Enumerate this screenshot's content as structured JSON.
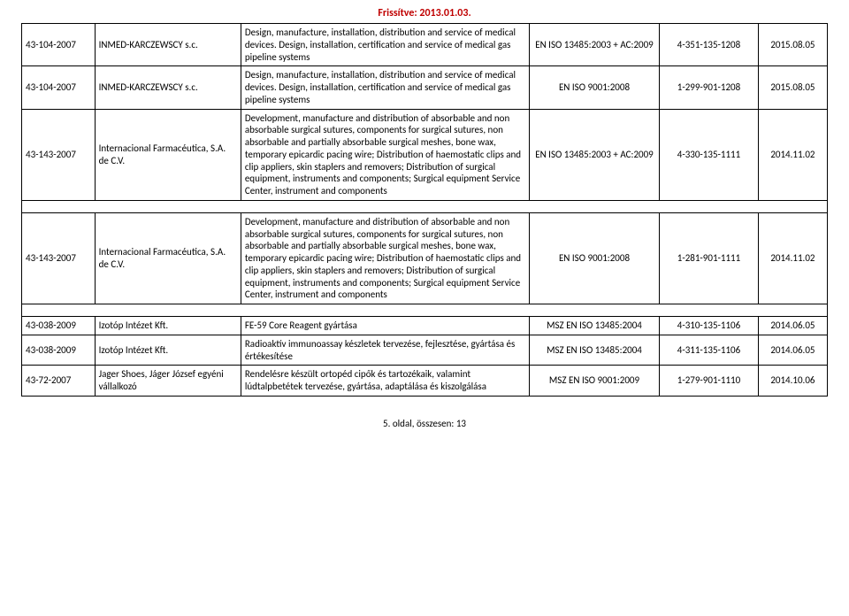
{
  "header": "Frissítve: 2013.01.03.",
  "footer": "5. oldal, összesen: 13",
  "rows": [
    {
      "id": "43-104-2007",
      "company": "INMED-KARCZEWSCY s.c.",
      "desc": "Design, manufacture, installation, distribution and service of medical devices. Design, installation, certification and service of medical gas pipeline systems",
      "standard": "EN ISO 13485:2003 + AC:2009",
      "code": "4-351-135-1208",
      "date": "2015.08.05"
    },
    {
      "id": "43-104-2007",
      "company": "INMED-KARCZEWSCY s.c.",
      "desc": "Design, manufacture, installation, distribution and service of medical devices. Design, installation, certification and service of medical gas pipeline systems",
      "standard": "EN ISO 9001:2008",
      "code": "1-299-901-1208",
      "date": "2015.08.05"
    },
    {
      "id": "43-143-2007",
      "company": "Internacional Farmacéutica, S.A. de C.V.",
      "desc": "Development, manufacture and distribution of absorbable and non absorbable surgical sutures, components for surgical sutures, non absorbable and partially absorbable surgical meshes, bone wax, temporary epicardic pacing wire; Distribution of haemostatic clips and clip appliers, skin staplers and removers; Distribution of surgical equipment, instruments and components; Surgical equipment Service Center, instrument and components",
      "standard": "EN ISO 13485:2003 + AC:2009",
      "code": "4-330-135-1111",
      "date": "2014.11.02"
    },
    {
      "id": "43-143-2007",
      "company": "Internacional Farmacéutica, S.A. de C.V.",
      "desc": "Development, manufacture and distribution of absorbable and non absorbable surgical sutures, components for surgical sutures, non absorbable and partially absorbable surgical meshes, bone wax, temporary epicardic pacing wire; Distribution of haemostatic clips and clip appliers, skin staplers and removers; Distribution of surgical equipment, instruments and components; Surgical equipment Service Center, instrument and components",
      "standard": "EN ISO 9001:2008",
      "code": "1-281-901-1111",
      "date": "2014.11.02"
    },
    {
      "id": "43-038-2009",
      "company": "Izotóp Intézet Kft.",
      "desc": "FE-59 Core Reagent gyártása",
      "standard": "MSZ EN ISO 13485:2004",
      "code": "4-310-135-1106",
      "date": "2014.06.05"
    },
    {
      "id": "43-038-2009",
      "company": "Izotóp Intézet Kft.",
      "desc": "Radioaktív immunoassay készletek tervezése, fejlesztése, gyártása és értékesítése",
      "standard": "MSZ EN ISO 13485:2004",
      "code": "4-311-135-1106",
      "date": "2014.06.05"
    },
    {
      "id": "43-72-2007",
      "company": "Jager Shoes, Jáger József egyéni vállalkozó",
      "desc": "Rendelésre készült ortopéd cipők és tartozékaik, valamint lúdtalpbetétek tervezése, gyártása, adaptálása és kiszolgálása",
      "standard": "MSZ EN ISO 9001:2009",
      "code": "1-279-901-1110",
      "date": "2014.10.06"
    }
  ]
}
